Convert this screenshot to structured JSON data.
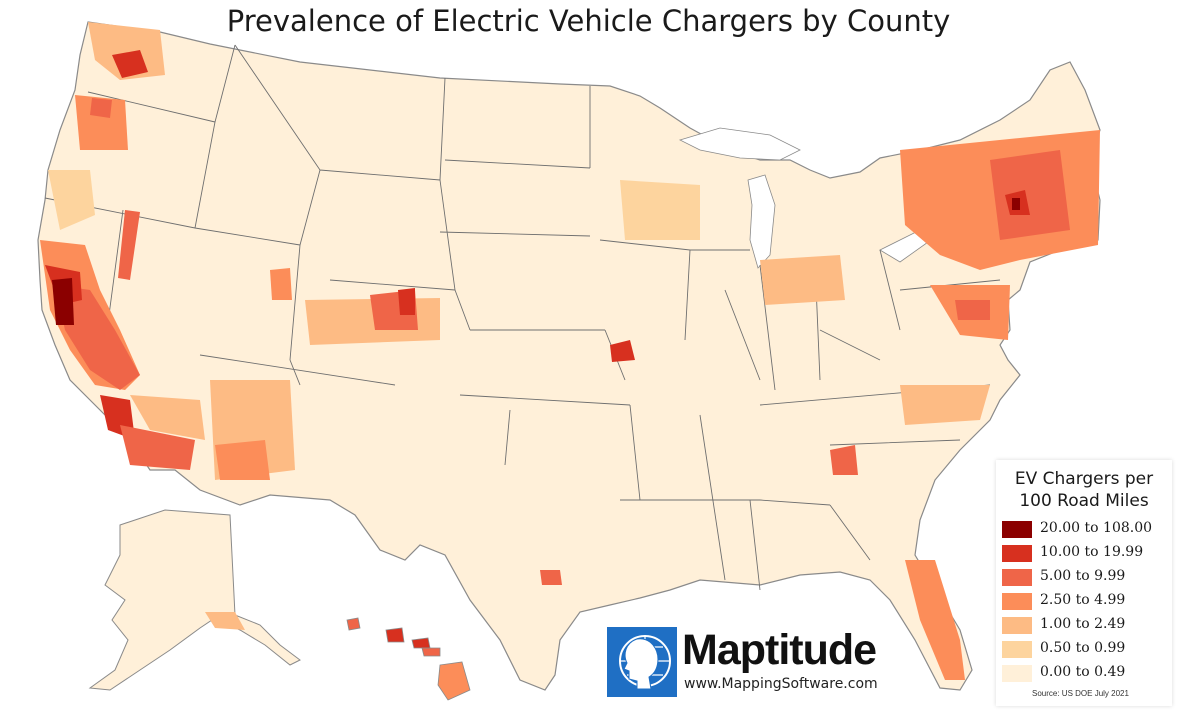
{
  "title": "Prevalence of Electric Vehicle Chargers by County",
  "legend": {
    "title_line1": "EV Chargers per",
    "title_line2": "100 Road Miles",
    "classes": [
      {
        "label": "20.00 to 108.00",
        "color": "#8b0000"
      },
      {
        "label": "10.00 to 19.99",
        "color": "#d7301f"
      },
      {
        "label": "5.00 to 9.99",
        "color": "#ef6548"
      },
      {
        "label": "2.50 to 4.99",
        "color": "#fc8d59"
      },
      {
        "label": "1.00 to 2.49",
        "color": "#fdbb84"
      },
      {
        "label": "0.50 to 0.99",
        "color": "#fdd49e"
      },
      {
        "label": "0.00 to 0.49",
        "color": "#fff0d9"
      }
    ]
  },
  "source": "Source: US DOE July 2021",
  "brand": {
    "name": "Maptitude",
    "url": "www.MappingSoftware.com",
    "logo_color": "#1f6fc4"
  }
}
